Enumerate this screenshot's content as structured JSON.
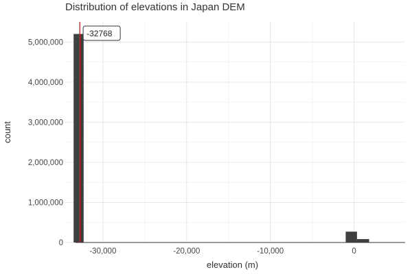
{
  "chart_data": {
    "type": "bar",
    "title": "Distribution of elevations in Japan DEM",
    "xlabel": "elevation (m)",
    "ylabel": "count",
    "xlim": [
      -34500,
      6100
    ],
    "ylim": [
      0,
      5500000
    ],
    "xticks": [
      -30000,
      -20000,
      -10000,
      0
    ],
    "xtick_labels": [
      "-30,000",
      "-20,000",
      "-10,000",
      "0"
    ],
    "yticks": [
      0,
      1000000,
      2000000,
      3000000,
      4000000,
      5000000
    ],
    "ytick_labels": [
      "0",
      "1,000,000",
      "2,000,000",
      "3,000,000",
      "4,000,000",
      "5,000,000"
    ],
    "grid": true,
    "bar_color": "#404040",
    "bins": [
      {
        "x0": -33500,
        "x1": -32300,
        "count": 5200000
      },
      {
        "x0": -32300,
        "x1": -1000,
        "count": 0
      },
      {
        "x0": -1000,
        "x1": 350,
        "count": 270000
      },
      {
        "x0": 350,
        "x1": 1800,
        "count": 85000
      },
      {
        "x0": 1800,
        "x1": 4500,
        "count": 6000
      }
    ],
    "annotation": {
      "x": -32768,
      "label": "-32768",
      "line_color": "#cc2222"
    }
  }
}
